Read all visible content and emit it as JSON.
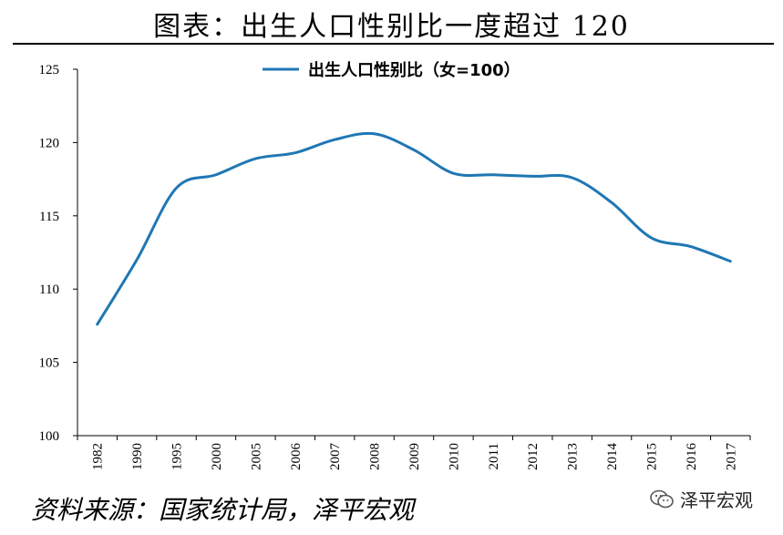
{
  "title": "图表：出生人口性别比一度超过 120",
  "source": "资料来源：国家统计局，泽平宏观",
  "watermark": "泽平宏观",
  "colors": {
    "line": "#1f77b4"
  },
  "chart_data": {
    "type": "line",
    "categories": [
      "1982",
      "1990",
      "1995",
      "2000",
      "2005",
      "2006",
      "2007",
      "2008",
      "2009",
      "2010",
      "2011",
      "2012",
      "2013",
      "2014",
      "2015",
      "2016",
      "2017"
    ],
    "series": [
      {
        "name": "出生人口性别比（女=100）",
        "values": [
          107.6,
          112,
          116.9,
          117.8,
          118.9,
          119.3,
          120.2,
          120.6,
          119.5,
          117.9,
          117.8,
          117.7,
          117.6,
          115.9,
          113.5,
          112.9,
          111.9
        ]
      }
    ],
    "ylim": [
      100,
      125
    ],
    "yticks": [
      100,
      105,
      110,
      115,
      120,
      125
    ],
    "legend": "top-center",
    "grid": false
  }
}
